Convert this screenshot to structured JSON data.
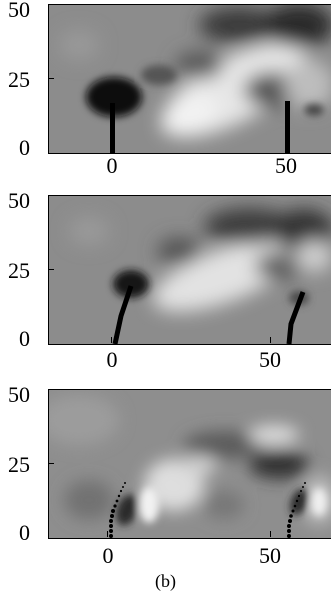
{
  "figure": {
    "caption": "(b)",
    "panels": [
      {
        "id": "panel-1",
        "y_ticks": [
          "50",
          "25",
          "0"
        ],
        "x_ticks": [
          "0",
          "50"
        ]
      },
      {
        "id": "panel-2",
        "y_ticks": [
          "50",
          "25",
          "0"
        ],
        "x_ticks": [
          "0",
          "50"
        ]
      },
      {
        "id": "panel-3",
        "y_ticks": [
          "50",
          "25",
          "0"
        ],
        "x_ticks": [
          "0",
          "50"
        ]
      }
    ]
  }
}
